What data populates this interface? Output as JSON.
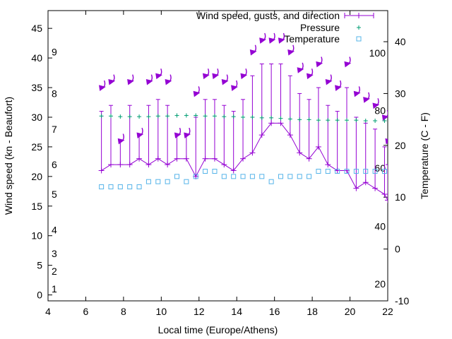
{
  "chart_data": {
    "type": "line",
    "xlabel": "Local time (Europe/Athens)",
    "ylabel": "Wind speed (kn - Beaufort)",
    "y2label": "Temperature (C - F)",
    "xlim": [
      4,
      22
    ],
    "ylim": [
      -1,
      48
    ],
    "y2lim": [
      -10,
      46
    ],
    "xticks": [
      "4",
      "6",
      "8",
      "10",
      "12",
      "14",
      "16",
      "18",
      "20",
      "22"
    ],
    "yticks": [
      "0",
      "5",
      "10",
      "15",
      "20",
      "25",
      "30",
      "35",
      "40",
      "45"
    ],
    "y2ticks": [
      "-10",
      "0",
      "10",
      "20",
      "30",
      "40"
    ],
    "beaufort_labels": [
      {
        "label": "1",
        "kn": 1
      },
      {
        "label": "2",
        "kn": 4
      },
      {
        "label": "3",
        "kn": 7
      },
      {
        "label": "4",
        "kn": 11
      },
      {
        "label": "5",
        "kn": 17
      },
      {
        "label": "6",
        "kn": 22
      },
      {
        "label": "7",
        "kn": 28
      },
      {
        "label": "8",
        "kn": 34
      },
      {
        "label": "9",
        "kn": 41
      }
    ],
    "fahrenheit_labels": [
      {
        "label": "20",
        "c": -6.7
      },
      {
        "label": "40",
        "c": 4.4
      },
      {
        "label": "60",
        "c": 15.6
      },
      {
        "label": "80",
        "c": 26.7
      },
      {
        "label": "100",
        "c": 37.8
      }
    ],
    "legend": [
      "Wind speed, gusts, and direction",
      "Pressure",
      "Temperature"
    ],
    "legend_position": "top-right",
    "colors": {
      "wind": "#9400d3",
      "pressure": "#009e73",
      "temperature": "#56b4e9"
    },
    "wind": [
      {
        "t": 6.83,
        "speed": 21,
        "gust": 31,
        "dir_y": 35
      },
      {
        "t": 7.33,
        "speed": 22,
        "gust": 32,
        "dir_y": 36
      },
      {
        "t": 7.83,
        "speed": 22,
        "gust": 26,
        "dir_y": 26
      },
      {
        "t": 8.33,
        "speed": 22,
        "gust": 32,
        "dir_y": 36
      },
      {
        "t": 8.83,
        "speed": 23,
        "gust": 27,
        "dir_y": 27
      },
      {
        "t": 9.33,
        "speed": 22,
        "gust": 32,
        "dir_y": 36
      },
      {
        "t": 9.83,
        "speed": 23,
        "gust": 33,
        "dir_y": 37
      },
      {
        "t": 10.33,
        "speed": 22,
        "gust": 32,
        "dir_y": 36
      },
      {
        "t": 10.83,
        "speed": 23,
        "gust": 27,
        "dir_y": 27
      },
      {
        "t": 11.33,
        "speed": 23,
        "gust": 27,
        "dir_y": 27
      },
      {
        "t": 11.83,
        "speed": 20,
        "gust": 30,
        "dir_y": 34
      },
      {
        "t": 12.33,
        "speed": 23,
        "gust": 33,
        "dir_y": 37
      },
      {
        "t": 12.83,
        "speed": 23,
        "gust": 33,
        "dir_y": 37
      },
      {
        "t": 13.33,
        "speed": 22,
        "gust": 32,
        "dir_y": 36
      },
      {
        "t": 13.83,
        "speed": 21,
        "gust": 31,
        "dir_y": 35
      },
      {
        "t": 14.33,
        "speed": 23,
        "gust": 33,
        "dir_y": 37
      },
      {
        "t": 14.83,
        "speed": 24,
        "gust": 37,
        "dir_y": 41
      },
      {
        "t": 15.33,
        "speed": 27,
        "gust": 39,
        "dir_y": 43
      },
      {
        "t": 15.83,
        "speed": 29,
        "gust": 39,
        "dir_y": 43
      },
      {
        "t": 16.33,
        "speed": 29,
        "gust": 39,
        "dir_y": 43
      },
      {
        "t": 16.83,
        "speed": 27,
        "gust": 37,
        "dir_y": 41
      },
      {
        "t": 17.33,
        "speed": 24,
        "gust": 34,
        "dir_y": 38
      },
      {
        "t": 17.83,
        "speed": 23,
        "gust": 33,
        "dir_y": 37
      },
      {
        "t": 18.33,
        "speed": 25,
        "gust": 35,
        "dir_y": 39
      },
      {
        "t": 18.83,
        "speed": 22,
        "gust": 32,
        "dir_y": 36
      },
      {
        "t": 19.33,
        "speed": 21,
        "gust": 31,
        "dir_y": 35
      },
      {
        "t": 19.83,
        "speed": 21,
        "gust": 35,
        "dir_y": 39
      },
      {
        "t": 20.33,
        "speed": 18,
        "gust": 30,
        "dir_y": 34
      },
      {
        "t": 20.83,
        "speed": 19,
        "gust": 29,
        "dir_y": 33
      },
      {
        "t": 21.33,
        "speed": 18,
        "gust": 28,
        "dir_y": 32
      },
      {
        "t": 21.83,
        "speed": 17,
        "gust": 25,
        "dir_y": 30
      },
      {
        "t": 22.0,
        "speed": 16,
        "gust": 22,
        "dir_y": 26
      }
    ],
    "pressure": [
      {
        "t": 6.83,
        "y": 30.2
      },
      {
        "t": 7.33,
        "y": 30.2
      },
      {
        "t": 7.83,
        "y": 30.1
      },
      {
        "t": 8.33,
        "y": 30.1
      },
      {
        "t": 8.83,
        "y": 30.1
      },
      {
        "t": 9.33,
        "y": 30.1
      },
      {
        "t": 9.83,
        "y": 30.2
      },
      {
        "t": 10.33,
        "y": 30.2
      },
      {
        "t": 10.83,
        "y": 30.3
      },
      {
        "t": 11.33,
        "y": 30.3
      },
      {
        "t": 11.83,
        "y": 30.3
      },
      {
        "t": 12.33,
        "y": 30.2
      },
      {
        "t": 12.83,
        "y": 30.2
      },
      {
        "t": 13.33,
        "y": 30.1
      },
      {
        "t": 13.83,
        "y": 30.1
      },
      {
        "t": 14.33,
        "y": 30.0
      },
      {
        "t": 14.83,
        "y": 30.0
      },
      {
        "t": 15.33,
        "y": 29.9
      },
      {
        "t": 15.83,
        "y": 29.9
      },
      {
        "t": 16.33,
        "y": 29.8
      },
      {
        "t": 16.83,
        "y": 29.7
      },
      {
        "t": 17.33,
        "y": 29.6
      },
      {
        "t": 17.83,
        "y": 29.6
      },
      {
        "t": 18.33,
        "y": 29.5
      },
      {
        "t": 18.83,
        "y": 29.5
      },
      {
        "t": 19.33,
        "y": 29.5
      },
      {
        "t": 19.83,
        "y": 29.5
      },
      {
        "t": 20.33,
        "y": 29.5
      },
      {
        "t": 20.83,
        "y": 29.4
      },
      {
        "t": 21.33,
        "y": 29.4
      },
      {
        "t": 21.83,
        "y": 29.4
      }
    ],
    "temperature": [
      {
        "t": 6.83,
        "c": 12
      },
      {
        "t": 7.33,
        "c": 12
      },
      {
        "t": 7.83,
        "c": 12
      },
      {
        "t": 8.33,
        "c": 12
      },
      {
        "t": 8.83,
        "c": 12
      },
      {
        "t": 9.33,
        "c": 13
      },
      {
        "t": 9.83,
        "c": 13
      },
      {
        "t": 10.33,
        "c": 13
      },
      {
        "t": 10.83,
        "c": 14
      },
      {
        "t": 11.33,
        "c": 13
      },
      {
        "t": 11.83,
        "c": 14
      },
      {
        "t": 12.33,
        "c": 15
      },
      {
        "t": 12.83,
        "c": 15
      },
      {
        "t": 13.33,
        "c": 14
      },
      {
        "t": 13.83,
        "c": 14
      },
      {
        "t": 14.33,
        "c": 14
      },
      {
        "t": 14.83,
        "c": 14
      },
      {
        "t": 15.33,
        "c": 14
      },
      {
        "t": 15.83,
        "c": 13
      },
      {
        "t": 16.33,
        "c": 14
      },
      {
        "t": 16.83,
        "c": 14
      },
      {
        "t": 17.33,
        "c": 14
      },
      {
        "t": 17.83,
        "c": 14
      },
      {
        "t": 18.33,
        "c": 15
      },
      {
        "t": 18.83,
        "c": 15
      },
      {
        "t": 19.33,
        "c": 15
      },
      {
        "t": 19.83,
        "c": 15
      },
      {
        "t": 20.33,
        "c": 15
      },
      {
        "t": 20.83,
        "c": 15
      },
      {
        "t": 21.33,
        "c": 15
      },
      {
        "t": 21.83,
        "c": 15
      }
    ]
  }
}
